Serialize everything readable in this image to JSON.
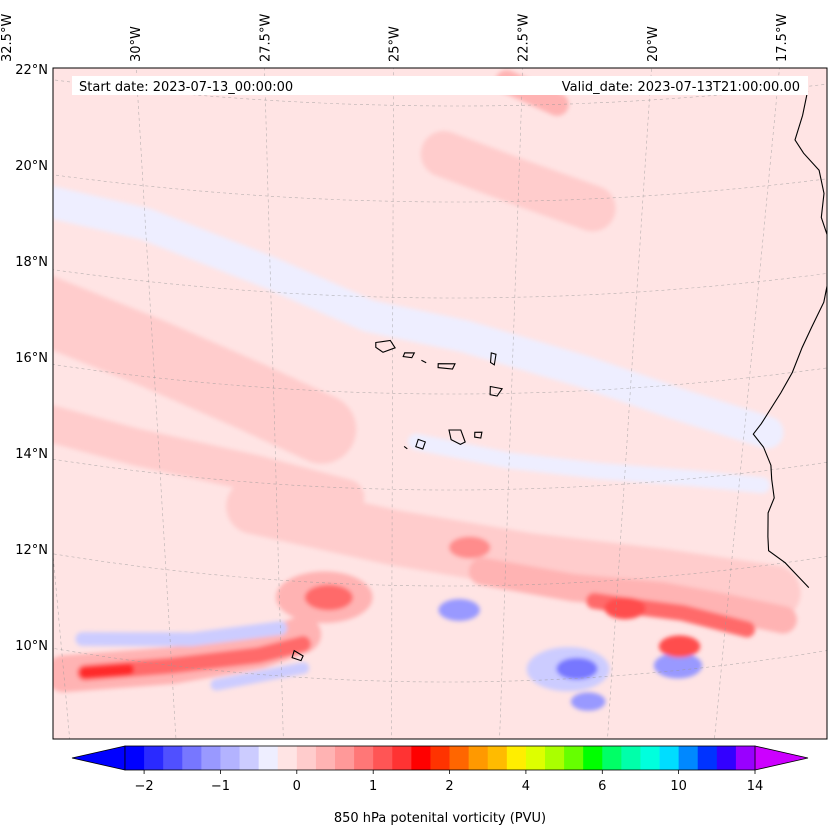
{
  "header": {
    "start_date": "Start date: 2023-07-13_00:00:00",
    "valid_date": "Valid_date: 2023-07-13T21:00:00.00"
  },
  "map": {
    "projection": "lambert-conformal",
    "lon_range": [
      -33.0,
      -15.7
    ],
    "lat_range": [
      8.8,
      22.8
    ],
    "gridlines": "dashed-light-gray",
    "coastline_color": "#000000",
    "lon_ticks": [
      {
        "value": -32.5,
        "label": "32.5°W"
      },
      {
        "value": -30.0,
        "label": "30°W"
      },
      {
        "value": -27.5,
        "label": "27.5°W"
      },
      {
        "value": -25.0,
        "label": "25°W"
      },
      {
        "value": -22.5,
        "label": "22.5°W"
      },
      {
        "value": -20.0,
        "label": "20°W"
      },
      {
        "value": -17.5,
        "label": "17.5°W"
      }
    ],
    "lat_ticks": [
      {
        "value": 22,
        "label": "22°N"
      },
      {
        "value": 20,
        "label": "20°N"
      },
      {
        "value": 18,
        "label": "18°N"
      },
      {
        "value": 16,
        "label": "16°N"
      },
      {
        "value": 14,
        "label": "14°N"
      },
      {
        "value": 12,
        "label": "12°N"
      },
      {
        "value": 10,
        "label": "10°N"
      }
    ],
    "background_level_color": "#ffe4e4",
    "features": [
      {
        "kind": "band",
        "lon": [
          -32.8,
          -30.0,
          -27.5,
          -25.5,
          -23.5,
          -21.0,
          -19.0,
          -17.0
        ],
        "lat": [
          19.5,
          19.2,
          18.4,
          17.6,
          17.2,
          16.4,
          15.6,
          14.8
        ],
        "width_deg": 0.7,
        "color": "#eeeeff"
      },
      {
        "kind": "band",
        "lon": [
          -24.5,
          -22.5,
          -20.5,
          -18.5,
          -17.0
        ],
        "lat": [
          15.0,
          14.6,
          14.3,
          14.0,
          13.7
        ],
        "width_deg": 0.35,
        "color": "#eeeeff"
      },
      {
        "kind": "band",
        "lon": [
          -32.5,
          -30.0,
          -28.0,
          -26.5
        ],
        "lat": [
          17.2,
          16.5,
          15.8,
          15.2
        ],
        "width_deg": 1.5,
        "color": "#ffcccc"
      },
      {
        "kind": "band",
        "lon": [
          -32.8,
          -30.5,
          -28.0,
          -26.0
        ],
        "lat": [
          14.8,
          14.5,
          14.2,
          13.8
        ],
        "width_deg": 0.8,
        "color": "#ffcccc"
      },
      {
        "kind": "band",
        "lon": [
          -24.0,
          -22.5,
          -21.0
        ],
        "lat": [
          21.0,
          20.4,
          19.8
        ],
        "width_deg": 1.0,
        "color": "#ffcccc"
      },
      {
        "kind": "band",
        "lon": [
          -22.8,
          -21.8
        ],
        "lat": [
          22.5,
          22.0
        ],
        "width_deg": 0.5,
        "color": "#ffb3b3"
      },
      {
        "kind": "band",
        "lon": [
          -28.0,
          -25.0,
          -22.0,
          -19.0,
          -16.5
        ],
        "lat": [
          13.5,
          13.0,
          12.5,
          12.0,
          11.4
        ],
        "width_deg": 1.2,
        "color": "#ffcccc"
      },
      {
        "kind": "band",
        "lon": [
          -23.0,
          -21.0,
          -19.0,
          -17.5,
          -16.2
        ],
        "lat": [
          12.3,
          11.9,
          11.6,
          11.2,
          10.8
        ],
        "width_deg": 0.6,
        "color": "#ffb3b3"
      },
      {
        "kind": "band",
        "lon": [
          -20.5,
          -19.5,
          -18.5,
          -17.0
        ],
        "lat": [
          11.6,
          11.4,
          11.2,
          10.7
        ],
        "width_deg": 0.35,
        "color": "#ff6b6b"
      },
      {
        "kind": "band",
        "lon": [
          -32.5,
          -30.0,
          -28.0,
          -27.0
        ],
        "lat": [
          9.5,
          10.0,
          10.5,
          10.9
        ],
        "width_deg": 0.8,
        "color": "#ffb3b3"
      },
      {
        "kind": "band",
        "lon": [
          -32.0,
          -30.0,
          -28.0,
          -27.0
        ],
        "lat": [
          9.6,
          10.0,
          10.4,
          10.7
        ],
        "width_deg": 0.35,
        "color": "#ff6b6b"
      },
      {
        "kind": "band",
        "lon": [
          -32.0,
          -31.0
        ],
        "lat": [
          9.6,
          9.8
        ],
        "width_deg": 0.25,
        "color": "#ff2a2a"
      },
      {
        "kind": "band",
        "lon": [
          -32.0,
          -29.5,
          -27.5
        ],
        "lat": [
          10.3,
          10.6,
          11.0
        ],
        "width_deg": 0.3,
        "color": "#ccccff"
      },
      {
        "kind": "band",
        "lon": [
          -29.0,
          -27.0
        ],
        "lat": [
          9.7,
          10.2
        ],
        "width_deg": 0.25,
        "color": "#ccccff"
      },
      {
        "kind": "blob",
        "lon": -26.5,
        "lat": 11.7,
        "r_deg": 0.7,
        "color": "#ffb3b3"
      },
      {
        "kind": "blob",
        "lon": -26.4,
        "lat": 11.7,
        "r_deg": 0.35,
        "color": "#ff6b6b"
      },
      {
        "kind": "blob",
        "lon": -21.0,
        "lat": 10.2,
        "r_deg": 0.6,
        "color": "#ccccff"
      },
      {
        "kind": "blob",
        "lon": -20.8,
        "lat": 10.2,
        "r_deg": 0.3,
        "color": "#7777ff"
      },
      {
        "kind": "blob",
        "lon": -18.5,
        "lat": 10.1,
        "r_deg": 0.35,
        "color": "#9999ff"
      },
      {
        "kind": "blob",
        "lon": -23.5,
        "lat": 11.5,
        "r_deg": 0.3,
        "color": "#9999ff"
      },
      {
        "kind": "blob",
        "lon": -20.5,
        "lat": 9.5,
        "r_deg": 0.25,
        "color": "#9999ff"
      },
      {
        "kind": "blob",
        "lon": -18.5,
        "lat": 10.5,
        "r_deg": 0.3,
        "color": "#ff4d4d"
      },
      {
        "kind": "blob",
        "lon": -19.8,
        "lat": 11.4,
        "r_deg": 0.3,
        "color": "#ff4d4d"
      },
      {
        "kind": "blob",
        "lon": -23.3,
        "lat": 12.8,
        "r_deg": 0.3,
        "color": "#ff8c8c"
      }
    ],
    "coastline": [
      [
        -16.9,
        21.9
      ],
      [
        -16.95,
        21.4
      ],
      [
        -17.05,
        20.9
      ],
      [
        -16.85,
        20.6
      ],
      [
        -16.5,
        20.2
      ],
      [
        -16.35,
        19.7
      ],
      [
        -16.35,
        19.2
      ],
      [
        -16.1,
        18.6
      ],
      [
        -16.05,
        18.0
      ],
      [
        -16.1,
        17.4
      ],
      [
        -16.3,
        16.9
      ],
      [
        -16.45,
        16.5
      ],
      [
        -16.6,
        16.0
      ],
      [
        -16.8,
        15.6
      ],
      [
        -17.15,
        15.0
      ],
      [
        -17.3,
        14.8
      ],
      [
        -17.05,
        14.5
      ],
      [
        -16.85,
        14.1
      ],
      [
        -16.8,
        13.8
      ],
      [
        -16.7,
        13.4
      ],
      [
        -16.8,
        13.1
      ],
      [
        -16.75,
        12.6
      ],
      [
        -16.7,
        12.3
      ],
      [
        -16.3,
        12.0
      ],
      [
        -16.0,
        11.7
      ],
      [
        -15.7,
        11.4
      ]
    ],
    "islands": [
      [
        [
          -25.35,
          17.05
        ],
        [
          -25.05,
          17.1
        ],
        [
          -24.95,
          16.95
        ],
        [
          -25.2,
          16.85
        ],
        [
          -25.35,
          16.95
        ]
      ],
      [
        [
          -24.75,
          16.85
        ],
        [
          -24.55,
          16.85
        ],
        [
          -24.6,
          16.75
        ],
        [
          -24.78,
          16.77
        ]
      ],
      [
        [
          -24.4,
          16.7
        ],
        [
          -24.3,
          16.65
        ]
      ],
      [
        [
          -24.05,
          16.63
        ],
        [
          -23.7,
          16.63
        ],
        [
          -23.75,
          16.52
        ],
        [
          -24.05,
          16.55
        ]
      ],
      [
        [
          -22.95,
          16.85
        ],
        [
          -22.85,
          16.82
        ],
        [
          -22.88,
          16.6
        ],
        [
          -22.96,
          16.65
        ]
      ],
      [
        [
          -22.95,
          16.15
        ],
        [
          -22.7,
          16.1
        ],
        [
          -22.8,
          15.95
        ],
        [
          -22.95,
          15.98
        ]
      ],
      [
        [
          -23.8,
          15.25
        ],
        [
          -23.55,
          15.25
        ],
        [
          -23.45,
          15.0
        ],
        [
          -23.55,
          14.95
        ],
        [
          -23.75,
          15.05
        ]
      ],
      [
        [
          -23.25,
          15.2
        ],
        [
          -23.1,
          15.2
        ],
        [
          -23.12,
          15.08
        ],
        [
          -23.25,
          15.1
        ]
      ],
      [
        [
          -24.45,
          15.05
        ],
        [
          -24.3,
          15.0
        ],
        [
          -24.35,
          14.85
        ],
        [
          -24.5,
          14.9
        ]
      ],
      [
        [
          -24.75,
          14.9
        ],
        [
          -24.68,
          14.85
        ]
      ],
      [
        [
          -27.2,
          10.55
        ],
        [
          -27.0,
          10.45
        ],
        [
          -27.05,
          10.35
        ],
        [
          -27.25,
          10.4
        ]
      ]
    ]
  },
  "colorbar": {
    "title": "850 hPa potenital vorticity (PVU)",
    "colors": [
      "#0000ff",
      "#2a2aff",
      "#5050ff",
      "#7777ff",
      "#9999ff",
      "#b3b3ff",
      "#ccccff",
      "#eeeeff",
      "#ffe4e4",
      "#ffcccc",
      "#ffb3b3",
      "#ff9999",
      "#ff7777",
      "#ff5555",
      "#ff3333",
      "#ff0000",
      "#ff3300",
      "#ff6600",
      "#ff9900",
      "#ffbb00",
      "#ffee00",
      "#ddff00",
      "#aaff00",
      "#66ff00",
      "#00ff00",
      "#00ff66",
      "#00ffaa",
      "#00ffdd",
      "#00ddff",
      "#0088ff",
      "#0033ff",
      "#3300ff",
      "#9900ff"
    ],
    "under_color": "#0000ff",
    "over_color": "#cc00ff",
    "ticks": [
      {
        "index": 1,
        "label": "−2"
      },
      {
        "index": 5,
        "label": "−1"
      },
      {
        "index": 9,
        "label": "0"
      },
      {
        "index": 13,
        "label": "1"
      },
      {
        "index": 17,
        "label": "2"
      },
      {
        "index": 21,
        "label": "4"
      },
      {
        "index": 25,
        "label": "6"
      },
      {
        "index": 29,
        "label": "10"
      },
      {
        "index": 33,
        "label": "14"
      }
    ]
  }
}
